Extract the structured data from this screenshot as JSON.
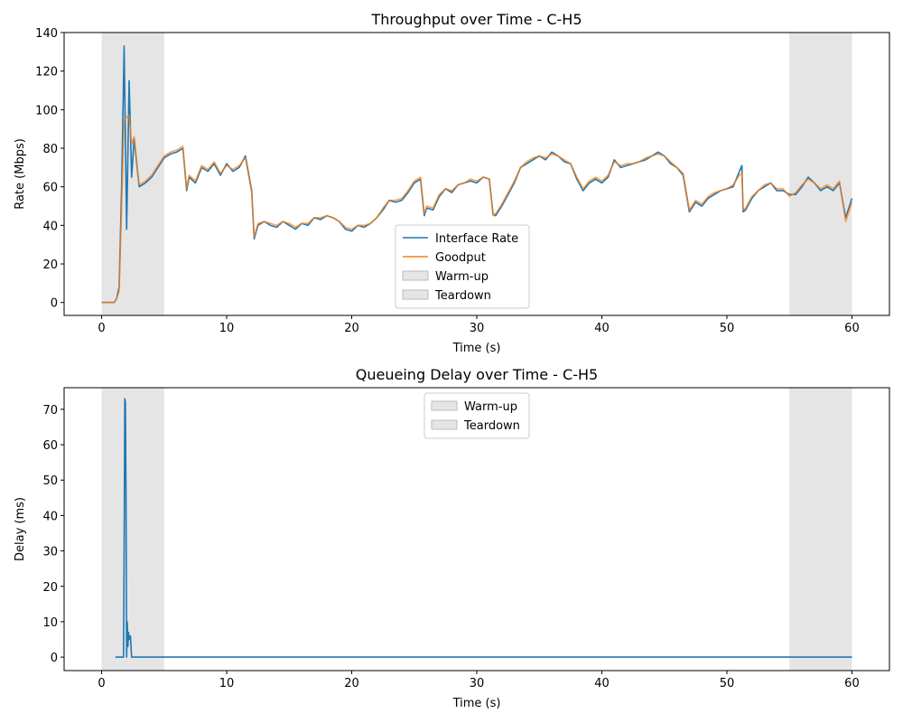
{
  "chart_data": [
    {
      "type": "line",
      "title": "Throughput over Time - C-H5",
      "xlabel": "Time (s)",
      "ylabel": "Rate (Mbps)",
      "xlim": [
        -3,
        63
      ],
      "ylim": [
        -6.7,
        140
      ],
      "xticks": [
        0,
        10,
        20,
        30,
        40,
        50,
        60
      ],
      "yticks": [
        0,
        20,
        40,
        60,
        80,
        100,
        120,
        140
      ],
      "legend": "lower center",
      "x": [
        0,
        0.5,
        1,
        1.2,
        1.4,
        1.6,
        1.8,
        2.0,
        2.2,
        2.4,
        2.6,
        3,
        3.5,
        4,
        4.5,
        5,
        5.5,
        6,
        6.5,
        6.8,
        7,
        7.5,
        8,
        8.5,
        9,
        9.5,
        10,
        10.5,
        11,
        11.5,
        12,
        12.2,
        12.5,
        13,
        13.5,
        14,
        14.5,
        15,
        15.5,
        16,
        16.5,
        17,
        17.5,
        18,
        18.5,
        19,
        19.5,
        20,
        20.5,
        21,
        21.5,
        22,
        22.5,
        23,
        23.5,
        24,
        24.5,
        25,
        25.5,
        25.8,
        26,
        26.5,
        27,
        27.5,
        28,
        28.5,
        29,
        29.5,
        30,
        30.5,
        31,
        31.3,
        31.5,
        32,
        32.5,
        33,
        33.5,
        34,
        34.5,
        35,
        35.5,
        36,
        36.5,
        37,
        37.5,
        38,
        38.5,
        39,
        39.5,
        40,
        40.5,
        41,
        41.5,
        42,
        42.5,
        43,
        43.5,
        44,
        44.5,
        45,
        45.5,
        46,
        46.5,
        47,
        47.5,
        48,
        48.5,
        49,
        49.5,
        50,
        50.5,
        51,
        51.2,
        51.3,
        51.5,
        52,
        52.5,
        53,
        53.5,
        54,
        54.5,
        55,
        55.5,
        56,
        56.5,
        57,
        57.5,
        58,
        58.5,
        59,
        59.5,
        60
      ],
      "series": [
        {
          "name": "Interface Rate",
          "color": "#1f77b4",
          "values": [
            0,
            0,
            0,
            2,
            8,
            60,
            133,
            38,
            115,
            65,
            85,
            60,
            62,
            65,
            70,
            75,
            77,
            78,
            80,
            58,
            65,
            62,
            70,
            68,
            72,
            66,
            72,
            68,
            70,
            76,
            58,
            33,
            40,
            42,
            40,
            39,
            42,
            40,
            38,
            41,
            40,
            44,
            43,
            45,
            44,
            42,
            38,
            37,
            40,
            39,
            41,
            44,
            48,
            53,
            52,
            53,
            57,
            62,
            64,
            45,
            49,
            48,
            55,
            59,
            57,
            61,
            62,
            63,
            62,
            65,
            64,
            46,
            45,
            50,
            56,
            62,
            70,
            72,
            74,
            76,
            74,
            78,
            76,
            73,
            72,
            64,
            58,
            62,
            64,
            62,
            65,
            74,
            70,
            71,
            72,
            73,
            74,
            76,
            78,
            76,
            72,
            70,
            66,
            47,
            52,
            50,
            54,
            56,
            58,
            59,
            60,
            68,
            71,
            47,
            48,
            54,
            58,
            60,
            62,
            58,
            58,
            56,
            56,
            60,
            65,
            62,
            58,
            60,
            58,
            62,
            44,
            54
          ]
        },
        {
          "name": "Goodput",
          "color": "#ff7f0e",
          "values": [
            0,
            0,
            0,
            2,
            6,
            50,
            95,
            96,
            97,
            82,
            86,
            61,
            63,
            66,
            71,
            76,
            78,
            79,
            81,
            59,
            66,
            63,
            71,
            69,
            73,
            67,
            71,
            69,
            71,
            75,
            57,
            34,
            41,
            42,
            41,
            40,
            42,
            41,
            39,
            41,
            41,
            44,
            44,
            45,
            44,
            42,
            39,
            38,
            40,
            40,
            41,
            44,
            49,
            53,
            53,
            54,
            58,
            63,
            65,
            46,
            50,
            49,
            56,
            59,
            58,
            61,
            62,
            64,
            63,
            65,
            64,
            45,
            46,
            51,
            57,
            63,
            70,
            73,
            75,
            76,
            75,
            77,
            76,
            74,
            72,
            65,
            59,
            63,
            65,
            63,
            66,
            73,
            71,
            72,
            72,
            73,
            75,
            76,
            77,
            76,
            73,
            70,
            67,
            48,
            53,
            51,
            55,
            57,
            58,
            59,
            61,
            66,
            67,
            48,
            49,
            55,
            58,
            61,
            62,
            59,
            59,
            55,
            57,
            61,
            64,
            62,
            59,
            61,
            59,
            63,
            42,
            52
          ]
        }
      ],
      "spans": [
        {
          "name": "Warm-up",
          "start": 0,
          "end": 5,
          "color": "#cccccc"
        },
        {
          "name": "Teardown",
          "start": 55,
          "end": 60,
          "color": "#cccccc"
        }
      ]
    },
    {
      "type": "line",
      "title": "Queueing Delay over Time - C-H5",
      "xlabel": "Time (s)",
      "ylabel": "Delay (ms)",
      "xlim": [
        -3,
        63
      ],
      "ylim": [
        -3.8,
        76.1
      ],
      "xticks": [
        0,
        10,
        20,
        30,
        40,
        50,
        60
      ],
      "yticks": [
        0,
        10,
        20,
        30,
        40,
        50,
        60,
        70
      ],
      "legend": "upper center",
      "x": [
        1.1,
        1.75,
        1.8,
        1.85,
        1.9,
        1.95,
        2.0,
        2.05,
        2.1,
        2.15,
        2.2,
        2.3,
        2.4,
        2.5,
        60
      ],
      "series": [
        {
          "name": null,
          "color": "#1f77b4",
          "values": [
            0,
            0,
            30,
            73,
            72,
            45,
            0,
            10,
            3,
            7,
            5,
            6,
            0,
            0,
            0
          ]
        }
      ],
      "spans": [
        {
          "name": "Warm-up",
          "start": 0,
          "end": 5,
          "color": "#cccccc"
        },
        {
          "name": "Teardown",
          "start": 55,
          "end": 60,
          "color": "#cccccc"
        }
      ]
    }
  ]
}
